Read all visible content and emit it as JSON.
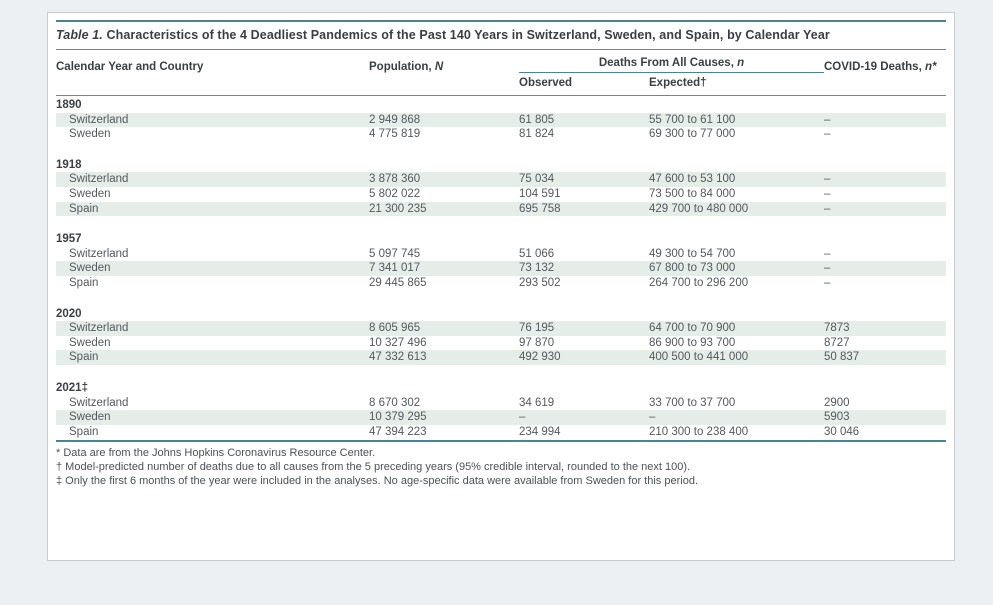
{
  "title": {
    "label": "Table 1.",
    "text": " Characteristics of the 4 Deadliest Pandemics of the Past 140 Years in Switzerland, Sweden, and Spain, by Calendar Year"
  },
  "header": {
    "col_year_country": "Calendar Year and Country",
    "population": {
      "text": "Population, ",
      "var": "N"
    },
    "deaths_group": {
      "text": "Deaths From All Causes, ",
      "var": "n"
    },
    "observed": "Observed",
    "expected": "Expected†",
    "covid": {
      "text": "COVID-19 Deaths, ",
      "var": "n*"
    }
  },
  "sections": [
    {
      "year": "1890",
      "rows": [
        {
          "country": "Switzerland",
          "population": "2 949 868",
          "observed": "61 805",
          "expected": "55 700 to 61 100",
          "covid": "–"
        },
        {
          "country": "Sweden",
          "population": "4 775 819",
          "observed": "81 824",
          "expected": "69 300 to 77 000",
          "covid": "–"
        }
      ]
    },
    {
      "year": "1918",
      "rows": [
        {
          "country": "Switzerland",
          "population": "3 878 360",
          "observed": "75 034",
          "expected": "47 600 to 53 100",
          "covid": "–"
        },
        {
          "country": "Sweden",
          "population": "5 802 022",
          "observed": "104 591",
          "expected": "73 500 to 84 000",
          "covid": "–"
        },
        {
          "country": "Spain",
          "population": "21 300 235",
          "observed": "695 758",
          "expected": "429 700 to 480 000",
          "covid": "–"
        }
      ]
    },
    {
      "year": "1957",
      "rows": [
        {
          "country": "Switzerland",
          "population": "5 097 745",
          "observed": "51 066",
          "expected": "49 300 to 54 700",
          "covid": "–"
        },
        {
          "country": "Sweden",
          "population": "7 341 017",
          "observed": "73 132",
          "expected": "67 800 to 73 000",
          "covid": "–"
        },
        {
          "country": "Spain",
          "population": "29 445 865",
          "observed": "293 502",
          "expected": "264 700 to 296 200",
          "covid": "–"
        }
      ]
    },
    {
      "year": "2020",
      "rows": [
        {
          "country": "Switzerland",
          "population": "8 605 965",
          "observed": "76 195",
          "expected": "64 700 to 70 900",
          "covid": "7873"
        },
        {
          "country": "Sweden",
          "population": "10 327 496",
          "observed": "97 870",
          "expected": "86 900 to 93 700",
          "covid": "8727"
        },
        {
          "country": "Spain",
          "population": "47 332 613",
          "observed": "492 930",
          "expected": "400 500 to 441 000",
          "covid": "50 837"
        }
      ]
    },
    {
      "year": "2021‡",
      "rows": [
        {
          "country": "Switzerland",
          "population": "8 670 302",
          "observed": "34 619",
          "expected": "33 700 to 37 700",
          "covid": "2900"
        },
        {
          "country": "Sweden",
          "population": "10 379 295",
          "observed": "–",
          "expected": "–",
          "covid": "5903"
        },
        {
          "country": "Spain",
          "population": "47 394 223",
          "observed": "234 994",
          "expected": "210 300 to 238 400",
          "covid": "30 046"
        }
      ]
    }
  ],
  "footnotes": [
    "* Data are from the Johns Hopkins Coronavirus Resource Center.",
    "† Model-predicted number of deaths due to all causes from the 5 preceding years (95% credible interval, rounded to the next 100).",
    "‡ Only the first 6 months of the year were included in the analyses. No age-specific data were available from Sweden for this period."
  ],
  "colors": {
    "rule_teal": "#4e828f",
    "stripe": "#e5ede9",
    "text_dark": "#3a3f44",
    "text_body": "#54595d"
  }
}
